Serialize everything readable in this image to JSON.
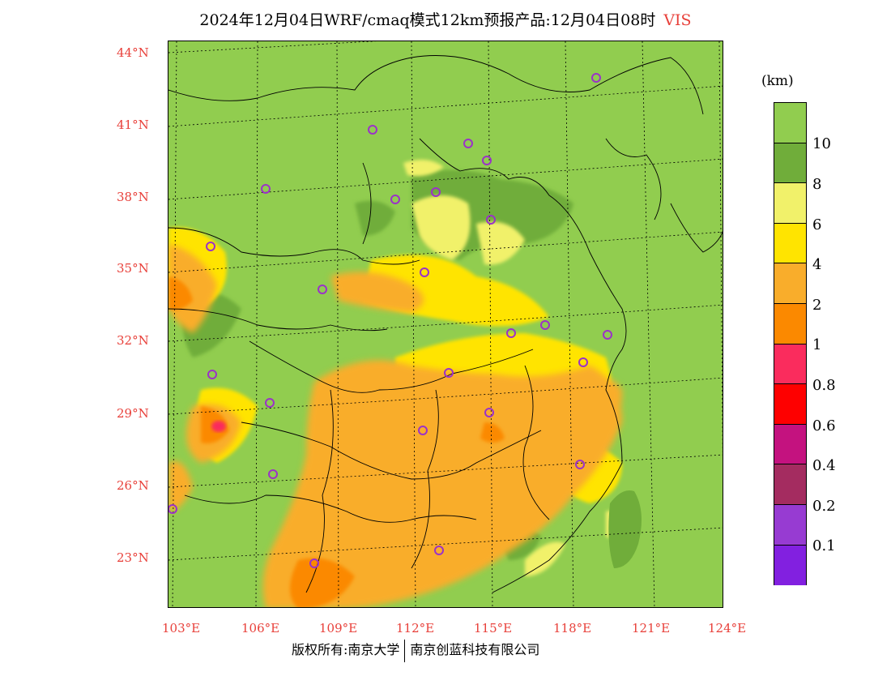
{
  "title": {
    "main": "2024年12月04日WRF/cmaq模式12km预报产品:12月04日08时",
    "variable": "VIS"
  },
  "lat_labels": [
    "44°N",
    "41°N",
    "38°N",
    "35°N",
    "32°N",
    "29°N",
    "26°N",
    "23°N"
  ],
  "lon_labels": [
    "103°E",
    "106°E",
    "109°E",
    "112°E",
    "115°E",
    "118°E",
    "121°E",
    "124°E"
  ],
  "legend": {
    "unit": "(km)",
    "levels": [
      "10",
      "8",
      "6",
      "4",
      "2",
      "1",
      "0.8",
      "0.6",
      "0.4",
      "0.2",
      "0.1"
    ],
    "colors": [
      "#91cd4f",
      "#70ad3a",
      "#f1f16a",
      "#ffe400",
      "#f9ad2b",
      "#fb8900",
      "#fa2c5d",
      "#fe0000",
      "#c4127f",
      "#a42c60",
      "#973bd2",
      "#8220e0"
    ]
  },
  "footer": {
    "left": "版权所有:南京大学",
    "right": "南京创蓝科技有限公司"
  },
  "station_marker_color": "#9b32c8"
}
